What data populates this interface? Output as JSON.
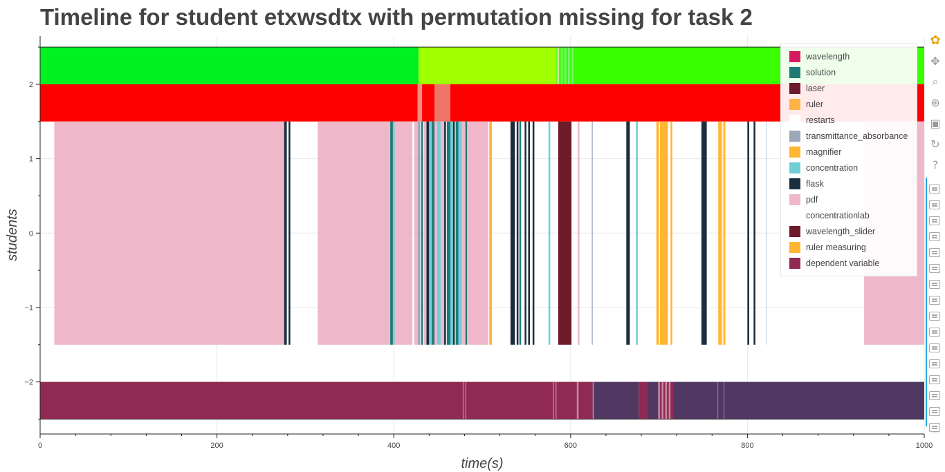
{
  "chart_data": {
    "type": "timeline",
    "title": "Timeline for student etxwsdtx with permutation missing for task 2",
    "xlabel": "time(s)",
    "ylabel": "students",
    "xlim": [
      0,
      1000
    ],
    "ylim": [
      -2.7,
      2.65
    ],
    "xticks": [
      0,
      200,
      400,
      600,
      800,
      1000
    ],
    "yticks": [
      -2,
      -1,
      0,
      1,
      2
    ],
    "grid": true,
    "legend_position": "top-right",
    "legend": [
      {
        "label": "wavelength",
        "color": "#d81b60"
      },
      {
        "label": "solution",
        "color": "#1e7b75"
      },
      {
        "label": "laser",
        "color": "#6d1a2a"
      },
      {
        "label": "ruler",
        "color": "#ffb347"
      },
      {
        "label": "restarts",
        "color": "#ffffff"
      },
      {
        "label": "transmittance_absorbance",
        "color": "#9aa8b8"
      },
      {
        "label": "magnifier",
        "color": "#ffb733"
      },
      {
        "label": "concentration",
        "color": "#6fcfd8"
      },
      {
        "label": "flask",
        "color": "#1a2e3e"
      },
      {
        "label": "pdf",
        "color": "#efb8ca"
      },
      {
        "label": "concentrationlab",
        "color": "#ffffff"
      },
      {
        "label": "wavelength_slider",
        "color": "#6d1a2a"
      },
      {
        "label": "ruler measuring",
        "color": "#ffb733"
      },
      {
        "label": "dependent variable",
        "color": "#912a52"
      }
    ],
    "rows": [
      {
        "name": "top",
        "y0": 2.0,
        "y1": 2.5,
        "segments": [
          {
            "start": 0,
            "end": 428,
            "color": "#00f121"
          },
          {
            "start": 428,
            "end": 584,
            "color": "#a0ff00"
          },
          {
            "start": 584,
            "end": 1000,
            "color": "#39ff00"
          }
        ],
        "accents": [
          {
            "start": 585,
            "end": 587,
            "color": "#cfe8a0"
          },
          {
            "start": 589,
            "end": 591,
            "color": "#7cf07c"
          },
          {
            "start": 593,
            "end": 595,
            "color": "#7cf07c"
          },
          {
            "start": 597,
            "end": 599,
            "color": "#7cf07c"
          },
          {
            "start": 601,
            "end": 603,
            "color": "#7cf07c"
          }
        ]
      },
      {
        "name": "second",
        "y0": 1.5,
        "y1": 2.0,
        "segments": [
          {
            "start": 0,
            "end": 427,
            "color": "#ff0000"
          },
          {
            "start": 427,
            "end": 432,
            "color": "#f28e82"
          },
          {
            "start": 432,
            "end": 446,
            "color": "#ff0000"
          },
          {
            "start": 446,
            "end": 464,
            "color": "#f07468"
          },
          {
            "start": 464,
            "end": 1000,
            "color": "#ff0000"
          }
        ],
        "accents": []
      },
      {
        "name": "middle",
        "y0": -1.5,
        "y1": 1.5,
        "segments": [
          {
            "start": 16,
            "end": 276,
            "color": "#efb8ca"
          },
          {
            "start": 276,
            "end": 279,
            "color": "#1a2e3e"
          },
          {
            "start": 281,
            "end": 283,
            "color": "#1a2e3e"
          },
          {
            "start": 314,
            "end": 396,
            "color": "#efb8ca"
          },
          {
            "start": 396,
            "end": 399,
            "color": "#1e7b75"
          },
          {
            "start": 399,
            "end": 401,
            "color": "#6fcfd8"
          },
          {
            "start": 401,
            "end": 421,
            "color": "#efb8ca"
          },
          {
            "start": 423,
            "end": 427,
            "color": "#efb8ca"
          },
          {
            "start": 427,
            "end": 430,
            "color": "#9aa8b8"
          },
          {
            "start": 431,
            "end": 433,
            "color": "#1e7b75"
          },
          {
            "start": 434,
            "end": 437,
            "color": "#efb8ca"
          },
          {
            "start": 437,
            "end": 440,
            "color": "#1a2e3e"
          },
          {
            "start": 440,
            "end": 443,
            "color": "#6fcfd8"
          },
          {
            "start": 443,
            "end": 446,
            "color": "#1e7b75"
          },
          {
            "start": 446,
            "end": 449,
            "color": "#efb8ca"
          },
          {
            "start": 449,
            "end": 453,
            "color": "#6fcfd8"
          },
          {
            "start": 453,
            "end": 457,
            "color": "#efb8ca"
          },
          {
            "start": 457,
            "end": 459,
            "color": "#1a2e3e"
          },
          {
            "start": 460,
            "end": 464,
            "color": "#1e7b75"
          },
          {
            "start": 464,
            "end": 467,
            "color": "#6fcfd8"
          },
          {
            "start": 467,
            "end": 469,
            "color": "#1a2e3e"
          },
          {
            "start": 470,
            "end": 473,
            "color": "#1e7b75"
          },
          {
            "start": 473,
            "end": 477,
            "color": "#6fcfd8"
          },
          {
            "start": 477,
            "end": 481,
            "color": "#efb8ca"
          },
          {
            "start": 481,
            "end": 483,
            "color": "#1e7b75"
          },
          {
            "start": 483,
            "end": 507,
            "color": "#efb8ca"
          },
          {
            "start": 508,
            "end": 511,
            "color": "#ffb733"
          },
          {
            "start": 532,
            "end": 537,
            "color": "#1a2e3e"
          },
          {
            "start": 539,
            "end": 541,
            "color": "#1a2e3e"
          },
          {
            "start": 542,
            "end": 544,
            "color": "#1e7b75"
          },
          {
            "start": 548,
            "end": 550,
            "color": "#1a2e3e"
          },
          {
            "start": 552,
            "end": 554,
            "color": "#1a2e3e"
          },
          {
            "start": 557,
            "end": 559,
            "color": "#1a2e3e"
          },
          {
            "start": 575,
            "end": 577,
            "color": "#6fcfd8"
          },
          {
            "start": 586,
            "end": 590,
            "color": "#6d1a2a"
          },
          {
            "start": 590,
            "end": 601,
            "color": "#6d1a2a"
          },
          {
            "start": 608,
            "end": 610,
            "color": "#efb8ca"
          },
          {
            "start": 624,
            "end": 625,
            "color": "#9aa8b8"
          },
          {
            "start": 663,
            "end": 667,
            "color": "#1a2e3e"
          },
          {
            "start": 674,
            "end": 676,
            "color": "#6fcfd8"
          },
          {
            "start": 697,
            "end": 700,
            "color": "#ffb733"
          },
          {
            "start": 701,
            "end": 710,
            "color": "#ffb733"
          },
          {
            "start": 713,
            "end": 715,
            "color": "#ffb733"
          },
          {
            "start": 748,
            "end": 754,
            "color": "#1a2e3e"
          },
          {
            "start": 767,
            "end": 771,
            "color": "#ffb733"
          },
          {
            "start": 772,
            "end": 775,
            "color": "#ffb733"
          },
          {
            "start": 800,
            "end": 802,
            "color": "#1a2e3e"
          },
          {
            "start": 807,
            "end": 809,
            "color": "#1a2e3e"
          },
          {
            "start": 821,
            "end": 822,
            "color": "#c8d6e6"
          },
          {
            "start": 932,
            "end": 1000,
            "color": "#efb8ca"
          }
        ],
        "accents": [
          {
            "start": 772,
            "end": 773,
            "color": "#ffe3b8"
          }
        ]
      },
      {
        "name": "bottom",
        "y0": -2.5,
        "y1": -2.0,
        "segments": [
          {
            "start": 0,
            "end": 626,
            "color": "#912a52"
          },
          {
            "start": 626,
            "end": 677,
            "color": "#503862"
          },
          {
            "start": 677,
            "end": 687,
            "color": "#912a52"
          },
          {
            "start": 687,
            "end": 700,
            "color": "#503862"
          },
          {
            "start": 700,
            "end": 716,
            "color": "#912a52"
          },
          {
            "start": 716,
            "end": 1000,
            "color": "#503862"
          }
        ],
        "accents": [
          {
            "start": 478,
            "end": 479,
            "color": "#c08aa0"
          },
          {
            "start": 481,
            "end": 482,
            "color": "#c08aa0"
          },
          {
            "start": 580,
            "end": 581,
            "color": "#c08aa0"
          },
          {
            "start": 583,
            "end": 584,
            "color": "#c08aa0"
          },
          {
            "start": 607,
            "end": 609,
            "color": "#c08aa0"
          },
          {
            "start": 625,
            "end": 626,
            "color": "#9aa8b8"
          },
          {
            "start": 699,
            "end": 701,
            "color": "#c08aa0"
          },
          {
            "start": 703,
            "end": 705,
            "color": "#c08aa0"
          },
          {
            "start": 707,
            "end": 709,
            "color": "#c08aa0"
          },
          {
            "start": 711,
            "end": 713,
            "color": "#c08aa0"
          },
          {
            "start": 766,
            "end": 767,
            "color": "#8a7496"
          },
          {
            "start": 773,
            "end": 774,
            "color": "#8a7496"
          }
        ]
      }
    ]
  },
  "toolbar": {
    "tools": [
      {
        "name": "bokeh-logo-icon",
        "glyph": "✿"
      },
      {
        "name": "pan-icon",
        "glyph": "✥"
      },
      {
        "name": "box-zoom-icon",
        "glyph": "⌕"
      },
      {
        "name": "wheel-zoom-icon",
        "glyph": "⊕"
      },
      {
        "name": "save-icon",
        "glyph": "▣"
      },
      {
        "name": "reset-icon",
        "glyph": "↻"
      },
      {
        "name": "help-icon",
        "glyph": "?"
      }
    ],
    "hover_count": 16,
    "more_glyph": "···"
  }
}
